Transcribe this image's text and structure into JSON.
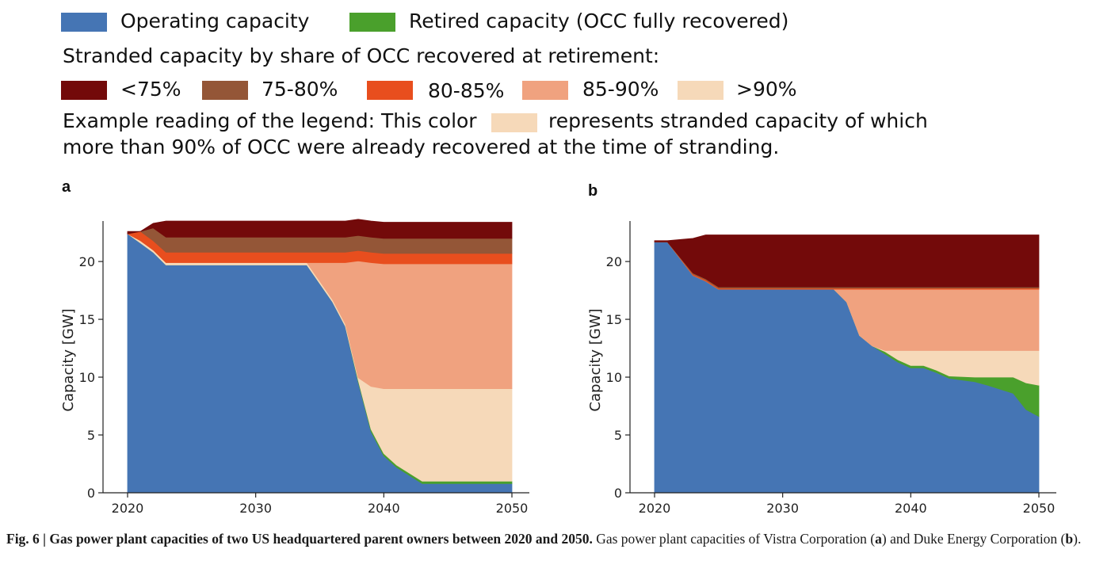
{
  "legend": {
    "operating": {
      "label": "Operating capacity",
      "color": "#4575b4"
    },
    "retired": {
      "label": "Retired capacity (OCC fully recovered)",
      "color": "#4aa02c"
    },
    "stranded_heading": "Stranded capacity by share of OCC recovered at retirement:",
    "stranded": [
      {
        "label": "<75%",
        "color": "#730a0a"
      },
      {
        "label": "75-80%",
        "color": "#945637"
      },
      {
        "label": "80-85%",
        "color": "#e84e1e"
      },
      {
        "label": "85-90%",
        "color": "#f0a27f"
      },
      {
        "label": ">90%",
        "color": "#f6d9b9"
      }
    ],
    "example_part1": "Example reading of the legend: This color",
    "example_part2": "represents stranded capacity of which",
    "example_line2": "more than 90% of OCC were already recovered at the time of stranding."
  },
  "caption": {
    "bold": "Fig. 6 | Gas power plant capacities of two US headquartered parent owners between 2020 and 2050.",
    "text_a": "Gas power plant capacities of Vistra Corporation (",
    "a": "a",
    "text_mid": ") and Duke Energy Corporation (",
    "b": "b",
    "text_end": ")."
  },
  "chart_data": [
    {
      "panel": "a",
      "type": "area",
      "stacked": true,
      "xlabel": "",
      "ylabel": "Capacity [GW]",
      "xlim": [
        2018.5,
        2051.5
      ],
      "ylim": [
        0,
        23.5
      ],
      "xticks": [
        2020,
        2030,
        2040,
        2050
      ],
      "yticks": [
        0,
        5,
        10,
        15,
        20
      ],
      "x": [
        2020,
        2021,
        2022,
        2023,
        2030,
        2034,
        2036,
        2037,
        2038,
        2039,
        2040,
        2041,
        2043,
        2050
      ],
      "series": [
        {
          "name": "Operating capacity",
          "color": "#4575b4",
          "values": [
            22.4,
            21.6,
            20.8,
            19.7,
            19.7,
            19.7,
            16.5,
            14.4,
            9.6,
            5.3,
            3.2,
            2.2,
            0.8,
            0.8
          ]
        },
        {
          "name": "Retired capacity (OCC fully recovered)",
          "color": "#4aa02c",
          "values": [
            0,
            0,
            0,
            0,
            0,
            0,
            0,
            0,
            0.15,
            0.2,
            0.2,
            0.2,
            0.2,
            0.2
          ]
        },
        {
          "name": ">90%",
          "color": "#f6d9b9",
          "values": [
            0,
            0.2,
            0.2,
            0.2,
            0.2,
            0.2,
            0.2,
            0.2,
            0.2,
            3.7,
            5.6,
            6.6,
            8.0,
            8.0
          ]
        },
        {
          "name": "85-90%",
          "color": "#f0a27f",
          "values": [
            0,
            0,
            0,
            0,
            0,
            0,
            3.2,
            5.3,
            10.1,
            10.7,
            10.8,
            10.8,
            10.8,
            10.8
          ]
        },
        {
          "name": "80-85%",
          "color": "#e84e1e",
          "values": [
            0,
            0.8,
            0.8,
            0.9,
            0.9,
            0.9,
            0.9,
            0.9,
            0.9,
            0.9,
            0.9,
            0.9,
            0.9,
            0.9
          ]
        },
        {
          "name": "75-80%",
          "color": "#945637",
          "values": [
            0,
            0,
            1.1,
            1.3,
            1.3,
            1.3,
            1.3,
            1.3,
            1.3,
            1.3,
            1.3,
            1.3,
            1.3,
            1.3
          ]
        },
        {
          "name": "<75%",
          "color": "#730a0a",
          "values": [
            0.2,
            0,
            0.4,
            1.4,
            1.4,
            1.4,
            1.4,
            1.4,
            1.4,
            1.4,
            1.4,
            1.4,
            1.4,
            1.4
          ]
        }
      ]
    },
    {
      "panel": "b",
      "type": "area",
      "stacked": true,
      "xlabel": "",
      "ylabel": "Capacity [GW]",
      "xlim": [
        2018.5,
        2051.5
      ],
      "ylim": [
        0,
        23.5
      ],
      "xticks": [
        2020,
        2030,
        2040,
        2050
      ],
      "yticks": [
        0,
        5,
        10,
        15,
        20
      ],
      "x": [
        2020,
        2021,
        2023,
        2024,
        2025,
        2030,
        2034,
        2035,
        2036,
        2037,
        2038,
        2039,
        2040,
        2041,
        2042,
        2043,
        2045,
        2046,
        2048,
        2049,
        2050
      ],
      "series": [
        {
          "name": "Operating capacity",
          "color": "#4575b4",
          "values": [
            21.7,
            21.7,
            18.8,
            18.3,
            17.6,
            17.6,
            17.6,
            16.5,
            13.6,
            12.7,
            12.0,
            11.3,
            10.8,
            10.8,
            10.4,
            9.9,
            9.6,
            9.3,
            8.6,
            7.2,
            6.6
          ]
        },
        {
          "name": "Retired capacity (OCC fully recovered)",
          "color": "#4aa02c",
          "values": [
            0,
            0,
            0,
            0,
            0,
            0,
            0,
            0,
            0,
            0,
            0.2,
            0.2,
            0.2,
            0.2,
            0.2,
            0.2,
            0.4,
            0.7,
            1.4,
            2.3,
            2.7
          ]
        },
        {
          "name": ">90%",
          "color": "#f6d9b9",
          "values": [
            0,
            0,
            0,
            0,
            0,
            0,
            0,
            0,
            0,
            0,
            0.1,
            0.8,
            1.3,
            1.3,
            1.7,
            2.2,
            2.3,
            2.3,
            2.3,
            2.8,
            3.0
          ]
        },
        {
          "name": "85-90%",
          "color": "#f0a27f",
          "values": [
            0,
            0,
            0,
            0,
            0,
            0,
            0,
            1.1,
            4.0,
            4.9,
            5.3,
            5.3,
            5.3,
            5.3,
            5.3,
            5.3,
            5.3,
            5.3,
            5.3,
            5.3,
            5.3
          ]
        },
        {
          "name": "80-85%",
          "color": "#e84e1e",
          "values": [
            0,
            0,
            0.1,
            0.1,
            0.1,
            0.1,
            0.1,
            0.1,
            0.1,
            0.1,
            0.1,
            0.1,
            0.1,
            0.1,
            0.1,
            0.1,
            0.1,
            0.1,
            0.1,
            0.1,
            0.1
          ]
        },
        {
          "name": "75-80%",
          "color": "#945637",
          "values": [
            0,
            0,
            0.1,
            0.1,
            0.1,
            0.1,
            0.1,
            0.1,
            0.1,
            0.1,
            0.1,
            0.1,
            0.1,
            0.1,
            0.1,
            0.1,
            0.1,
            0.1,
            0.1,
            0.1,
            0.1
          ]
        },
        {
          "name": "<75%",
          "color": "#730a0a",
          "values": [
            0.1,
            0.1,
            3.0,
            3.8,
            4.5,
            4.5,
            4.5,
            4.5,
            4.5,
            4.5,
            4.5,
            4.5,
            4.5,
            4.5,
            4.5,
            4.5,
            4.5,
            4.5,
            4.5,
            4.5,
            4.5
          ]
        }
      ]
    }
  ]
}
